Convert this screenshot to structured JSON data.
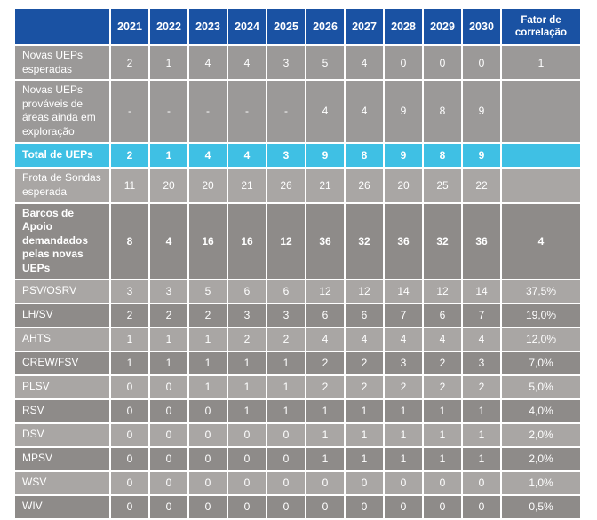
{
  "table": {
    "header": {
      "years": [
        "2021",
        "2022",
        "2023",
        "2024",
        "2025",
        "2026",
        "2027",
        "2028",
        "2029",
        "2030"
      ],
      "factor_label": "Fator de correlação"
    },
    "rows": [
      {
        "label": "Novas UEPs esperadas",
        "bg": "gray",
        "emphasis": false,
        "values": [
          "2",
          "1",
          "4",
          "4",
          "3",
          "5",
          "4",
          "0",
          "0",
          "0"
        ],
        "factor": "1"
      },
      {
        "label": "Novas UEPs prováveis de áreas ainda em exploração",
        "bg": "gray",
        "emphasis": false,
        "values": [
          "-",
          "-",
          "-",
          "-",
          "-",
          "4",
          "4",
          "9",
          "8",
          "9"
        ],
        "factor": ""
      },
      {
        "label": "Total de UEPs",
        "bg": "cyan",
        "emphasis": true,
        "values": [
          "2",
          "1",
          "4",
          "4",
          "3",
          "9",
          "8",
          "9",
          "8",
          "9"
        ],
        "factor": ""
      },
      {
        "label": "Frota de Sondas esperada",
        "bg": "light",
        "emphasis": false,
        "values": [
          "11",
          "20",
          "20",
          "21",
          "26",
          "21",
          "26",
          "20",
          "25",
          "22"
        ],
        "factor": ""
      },
      {
        "label": "Barcos de Apoio demandados pelas novas UEPs",
        "bg": "dark",
        "emphasis": true,
        "values": [
          "8",
          "4",
          "16",
          "16",
          "12",
          "36",
          "32",
          "36",
          "32",
          "36"
        ],
        "factor": "4"
      },
      {
        "label": "PSV/OSRV",
        "bg": "light",
        "emphasis": false,
        "values": [
          "3",
          "3",
          "5",
          "6",
          "6",
          "12",
          "12",
          "14",
          "12",
          "14"
        ],
        "factor": "37,5%"
      },
      {
        "label": "LH/SV",
        "bg": "dark",
        "emphasis": false,
        "values": [
          "2",
          "2",
          "2",
          "3",
          "3",
          "6",
          "6",
          "7",
          "6",
          "7"
        ],
        "factor": "19,0%"
      },
      {
        "label": "AHTS",
        "bg": "light",
        "emphasis": false,
        "values": [
          "1",
          "1",
          "1",
          "2",
          "2",
          "4",
          "4",
          "4",
          "4",
          "4"
        ],
        "factor": "12,0%"
      },
      {
        "label": "CREW/FSV",
        "bg": "dark",
        "emphasis": false,
        "values": [
          "1",
          "1",
          "1",
          "1",
          "1",
          "2",
          "2",
          "3",
          "2",
          "3"
        ],
        "factor": "7,0%"
      },
      {
        "label": "PLSV",
        "bg": "light",
        "emphasis": false,
        "values": [
          "0",
          "0",
          "1",
          "1",
          "1",
          "2",
          "2",
          "2",
          "2",
          "2"
        ],
        "factor": "5,0%"
      },
      {
        "label": "RSV",
        "bg": "dark",
        "emphasis": false,
        "values": [
          "0",
          "0",
          "0",
          "1",
          "1",
          "1",
          "1",
          "1",
          "1",
          "1"
        ],
        "factor": "4,0%"
      },
      {
        "label": "DSV",
        "bg": "light",
        "emphasis": false,
        "values": [
          "0",
          "0",
          "0",
          "0",
          "0",
          "1",
          "1",
          "1",
          "1",
          "1"
        ],
        "factor": "2,0%"
      },
      {
        "label": "MPSV",
        "bg": "dark",
        "emphasis": false,
        "values": [
          "0",
          "0",
          "0",
          "0",
          "0",
          "1",
          "1",
          "1",
          "1",
          "1"
        ],
        "factor": "2,0%"
      },
      {
        "label": "WSV",
        "bg": "light",
        "emphasis": false,
        "values": [
          "0",
          "0",
          "0",
          "0",
          "0",
          "0",
          "0",
          "0",
          "0",
          "0"
        ],
        "factor": "1,0%"
      },
      {
        "label": "WIV",
        "bg": "dark",
        "emphasis": false,
        "values": [
          "0",
          "0",
          "0",
          "0",
          "0",
          "0",
          "0",
          "0",
          "0",
          "0"
        ],
        "factor": "0,5%"
      }
    ]
  },
  "colors": {
    "header_blue": "#1A52A3",
    "total_cyan": "#3FC0E4",
    "row_gray": "#9B9998",
    "row_light": "#A9A6A4",
    "row_dark": "#8E8B89",
    "text": "#FFFFFF"
  },
  "chart_data": {
    "type": "table",
    "columns": [
      "",
      "2021",
      "2022",
      "2023",
      "2024",
      "2025",
      "2026",
      "2027",
      "2028",
      "2029",
      "2030",
      "Fator de correlação"
    ],
    "rows": [
      [
        "Novas UEPs esperadas",
        "2",
        "1",
        "4",
        "4",
        "3",
        "5",
        "4",
        "0",
        "0",
        "0",
        "1"
      ],
      [
        "Novas UEPs prováveis de áreas ainda em exploração",
        "-",
        "-",
        "-",
        "-",
        "-",
        "4",
        "4",
        "9",
        "8",
        "9",
        ""
      ],
      [
        "Total de UEPs",
        "2",
        "1",
        "4",
        "4",
        "3",
        "9",
        "8",
        "9",
        "8",
        "9",
        ""
      ],
      [
        "Frota de Sondas esperada",
        "11",
        "20",
        "20",
        "21",
        "26",
        "21",
        "26",
        "20",
        "25",
        "22",
        ""
      ],
      [
        "Barcos de Apoio demandados pelas novas UEPs",
        "8",
        "4",
        "16",
        "16",
        "12",
        "36",
        "32",
        "36",
        "32",
        "36",
        "4"
      ],
      [
        "PSV/OSRV",
        "3",
        "3",
        "5",
        "6",
        "6",
        "12",
        "12",
        "14",
        "12",
        "14",
        "37,5%"
      ],
      [
        "LH/SV",
        "2",
        "2",
        "2",
        "3",
        "3",
        "6",
        "6",
        "7",
        "6",
        "7",
        "19,0%"
      ],
      [
        "AHTS",
        "1",
        "1",
        "1",
        "2",
        "2",
        "4",
        "4",
        "4",
        "4",
        "4",
        "12,0%"
      ],
      [
        "CREW/FSV",
        "1",
        "1",
        "1",
        "1",
        "1",
        "2",
        "2",
        "3",
        "2",
        "3",
        "7,0%"
      ],
      [
        "PLSV",
        "0",
        "0",
        "1",
        "1",
        "1",
        "2",
        "2",
        "2",
        "2",
        "2",
        "5,0%"
      ],
      [
        "RSV",
        "0",
        "0",
        "0",
        "1",
        "1",
        "1",
        "1",
        "1",
        "1",
        "1",
        "4,0%"
      ],
      [
        "DSV",
        "0",
        "0",
        "0",
        "0",
        "0",
        "1",
        "1",
        "1",
        "1",
        "1",
        "2,0%"
      ],
      [
        "MPSV",
        "0",
        "0",
        "0",
        "0",
        "0",
        "1",
        "1",
        "1",
        "1",
        "1",
        "2,0%"
      ],
      [
        "WSV",
        "0",
        "0",
        "0",
        "0",
        "0",
        "0",
        "0",
        "0",
        "0",
        "0",
        "1,0%"
      ],
      [
        "WIV",
        "0",
        "0",
        "0",
        "0",
        "0",
        "0",
        "0",
        "0",
        "0",
        "0",
        "0,5%"
      ]
    ]
  }
}
